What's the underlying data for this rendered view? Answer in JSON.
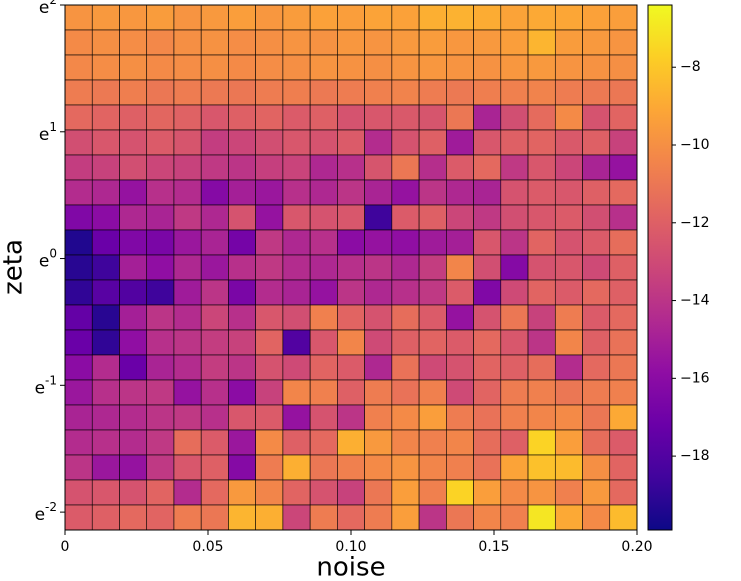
{
  "chart_data": {
    "type": "heatmap",
    "x_label": "noise",
    "y_label": "zeta",
    "xlim": [
      0,
      0.2
    ],
    "xticks": [
      0,
      0.05,
      {
        "value": 0.1,
        "label": "0.10"
      },
      0.15,
      {
        "value": 0.2,
        "label": "0.20"
      }
    ],
    "ylim": [
      0.1175,
      7.389
    ],
    "yscale": "log",
    "yticks": [
      {
        "value": 7.389,
        "label": "e^2"
      },
      {
        "value": 2.718,
        "label": "e^1"
      },
      {
        "value": 1,
        "label": "e^0"
      },
      {
        "value": 0.3679,
        "label": "e^-1"
      },
      {
        "value": 0.1353,
        "label": "e^-2"
      }
    ],
    "colormap": "plasma",
    "clim": [
      -19.9,
      -6.4
    ],
    "cticks": [
      {
        "value": -8,
        "label": "−8"
      },
      {
        "value": -10,
        "label": "−10"
      },
      {
        "value": -12,
        "label": "−12"
      },
      {
        "value": -14,
        "label": "−14"
      },
      {
        "value": -16,
        "label": "−16"
      },
      {
        "value": -18,
        "label": "−18"
      }
    ],
    "z": [
      [
        -9.8,
        -9.6,
        -9.7,
        -9.5,
        -9.8,
        -9.6,
        -9.4,
        -9.7,
        -9.5,
        -9.3,
        -9.4,
        -9.2,
        -9.3,
        -8.8,
        -8.7,
        -8.9,
        -9.2,
        -9.0,
        -9.1,
        -9.3,
        -9.4
      ],
      [
        -10.2,
        -10.0,
        -10.1,
        -10.3,
        -10.0,
        -9.9,
        -10.1,
        -10.0,
        -9.8,
        -9.9,
        -9.7,
        -9.8,
        -9.6,
        -9.5,
        -9.7,
        -9.6,
        -9.4,
        -8.6,
        -9.5,
        -9.6,
        -9.8
      ],
      [
        -10.3,
        -10.1,
        -10.0,
        -10.2,
        -10.1,
        -10.0,
        -10.2,
        -10.1,
        -10.0,
        -9.8,
        -9.9,
        -10.0,
        -9.8,
        -9.7,
        -9.8,
        -9.9,
        -9.7,
        -9.6,
        -9.8,
        -9.9,
        -10.0
      ],
      [
        -10.8,
        -10.9,
        -10.7,
        -11.0,
        -10.8,
        -10.9,
        -11.0,
        -10.8,
        -10.7,
        -10.9,
        -10.8,
        -10.6,
        -10.5,
        -10.8,
        -10.9,
        -10.7,
        -10.6,
        -10.5,
        -10.8,
        -10.9,
        -11.0
      ],
      [
        -11.6,
        -11.8,
        -12.0,
        -11.7,
        -11.9,
        -12.4,
        -12.0,
        -11.8,
        -12.2,
        -12.0,
        -12.6,
        -12.4,
        -12.3,
        -12.5,
        -11.0,
        -14.8,
        -12.8,
        -11.5,
        -10.2,
        -12.6,
        -11.8
      ],
      [
        -12.8,
        -12.4,
        -12.6,
        -12.2,
        -12.5,
        -13.6,
        -13.2,
        -12.8,
        -12.4,
        -12.6,
        -12.2,
        -14.4,
        -12.6,
        -12.0,
        -15.2,
        -12.4,
        -12.0,
        -11.8,
        -12.3,
        -12.0,
        -13.4
      ],
      [
        -13.6,
        -13.4,
        -12.8,
        -13.2,
        -13.4,
        -13.8,
        -14.0,
        -13.5,
        -13.3,
        -14.6,
        -14.2,
        -12.5,
        -11.0,
        -14.3,
        -12.2,
        -11.6,
        -13.8,
        -12.4,
        -13.2,
        -14.8,
        -15.6
      ],
      [
        -14.4,
        -14.6,
        -15.6,
        -14.2,
        -14.4,
        -16.2,
        -15.0,
        -15.4,
        -14.2,
        -14.6,
        -14.0,
        -14.8,
        -15.6,
        -14.0,
        -14.6,
        -14.8,
        -12.6,
        -12.2,
        -12.4,
        -12.0,
        -11.6
      ],
      [
        -16.4,
        -16.0,
        -14.6,
        -14.8,
        -13.8,
        -14.6,
        -12.6,
        -15.6,
        -12.4,
        -12.6,
        -12.4,
        -18.6,
        -12.2,
        -12.0,
        -13.2,
        -13.8,
        -12.8,
        -12.4,
        -12.2,
        -12.8,
        -14.2
      ],
      [
        -19.4,
        -17.2,
        -16.4,
        -16.6,
        -15.4,
        -14.8,
        -16.8,
        -13.8,
        -14.6,
        -14.2,
        -16.0,
        -15.6,
        -15.8,
        -15.2,
        -15.0,
        -12.4,
        -14.0,
        -11.8,
        -12.6,
        -12.2,
        -11.4
      ],
      [
        -19.2,
        -18.6,
        -15.0,
        -15.8,
        -14.6,
        -15.4,
        -14.2,
        -13.8,
        -14.4,
        -14.6,
        -14.2,
        -14.0,
        -14.6,
        -13.6,
        -10.4,
        -12.8,
        -16.2,
        -12.6,
        -12.4,
        -13.0,
        -12.0
      ],
      [
        -19.0,
        -17.8,
        -18.0,
        -18.6,
        -15.2,
        -14.0,
        -16.6,
        -14.4,
        -14.8,
        -15.6,
        -14.0,
        -14.6,
        -14.2,
        -13.8,
        -12.2,
        -16.4,
        -13.0,
        -11.8,
        -12.2,
        -11.6,
        -12.0
      ],
      [
        -17.4,
        -19.2,
        -15.0,
        -14.0,
        -14.4,
        -13.2,
        -14.2,
        -12.4,
        -12.8,
        -10.6,
        -11.8,
        -12.6,
        -11.4,
        -12.2,
        -15.6,
        -12.6,
        -11.0,
        -13.4,
        -10.8,
        -12.2,
        -11.6
      ],
      [
        -17.2,
        -19.0,
        -15.8,
        -14.2,
        -14.0,
        -13.6,
        -13.4,
        -11.8,
        -18.0,
        -12.4,
        -10.4,
        -13.0,
        -12.0,
        -11.8,
        -12.2,
        -11.6,
        -12.4,
        -14.0,
        -10.4,
        -12.0,
        -11.2
      ],
      [
        -16.0,
        -14.4,
        -17.2,
        -14.8,
        -14.4,
        -13.6,
        -14.0,
        -12.6,
        -13.0,
        -11.8,
        -12.2,
        -14.6,
        -11.2,
        -13.0,
        -12.6,
        -11.8,
        -12.0,
        -11.4,
        -14.4,
        -11.6,
        -11.0
      ],
      [
        -15.4,
        -14.2,
        -14.0,
        -13.8,
        -15.6,
        -14.2,
        -16.0,
        -13.4,
        -10.4,
        -10.6,
        -12.0,
        -10.8,
        -11.2,
        -10.6,
        -13.0,
        -11.8,
        -10.8,
        -10.6,
        -11.0,
        -10.8,
        -10.6
      ],
      [
        -14.8,
        -14.6,
        -14.4,
        -14.0,
        -13.8,
        -14.2,
        -12.4,
        -12.2,
        -15.6,
        -12.6,
        -14.0,
        -10.6,
        -10.2,
        -9.4,
        -10.8,
        -11.2,
        -10.6,
        -10.4,
        -10.2,
        -11.0,
        -9.0
      ],
      [
        -14.4,
        -14.2,
        -14.4,
        -13.8,
        -11.4,
        -12.2,
        -15.4,
        -10.2,
        -12.0,
        -11.6,
        -8.8,
        -9.6,
        -10.4,
        -10.6,
        -10.4,
        -11.4,
        -12.0,
        -7.6,
        -9.4,
        -11.4,
        -12.2
      ],
      [
        -14.0,
        -15.4,
        -15.6,
        -13.8,
        -12.4,
        -12.0,
        -16.2,
        -10.8,
        -8.8,
        -11.0,
        -10.6,
        -10.2,
        -9.8,
        -10.4,
        -10.6,
        -11.2,
        -9.2,
        -8.2,
        -8.4,
        -10.0,
        -11.8
      ],
      [
        -12.6,
        -12.4,
        -12.6,
        -11.8,
        -14.4,
        -11.6,
        -9.6,
        -10.4,
        -11.8,
        -12.6,
        -13.4,
        -11.0,
        -9.4,
        -10.6,
        -7.6,
        -9.4,
        -10.2,
        -9.8,
        -10.6,
        -9.6,
        -11.6
      ],
      [
        -12.2,
        -12.0,
        -11.6,
        -11.8,
        -10.8,
        -11.0,
        -8.6,
        -8.8,
        -13.2,
        -10.8,
        -11.6,
        -10.8,
        -9.4,
        -14.0,
        -11.0,
        -10.4,
        -10.6,
        -7.0,
        -9.0,
        -10.2,
        -8.4
      ]
    ]
  }
}
